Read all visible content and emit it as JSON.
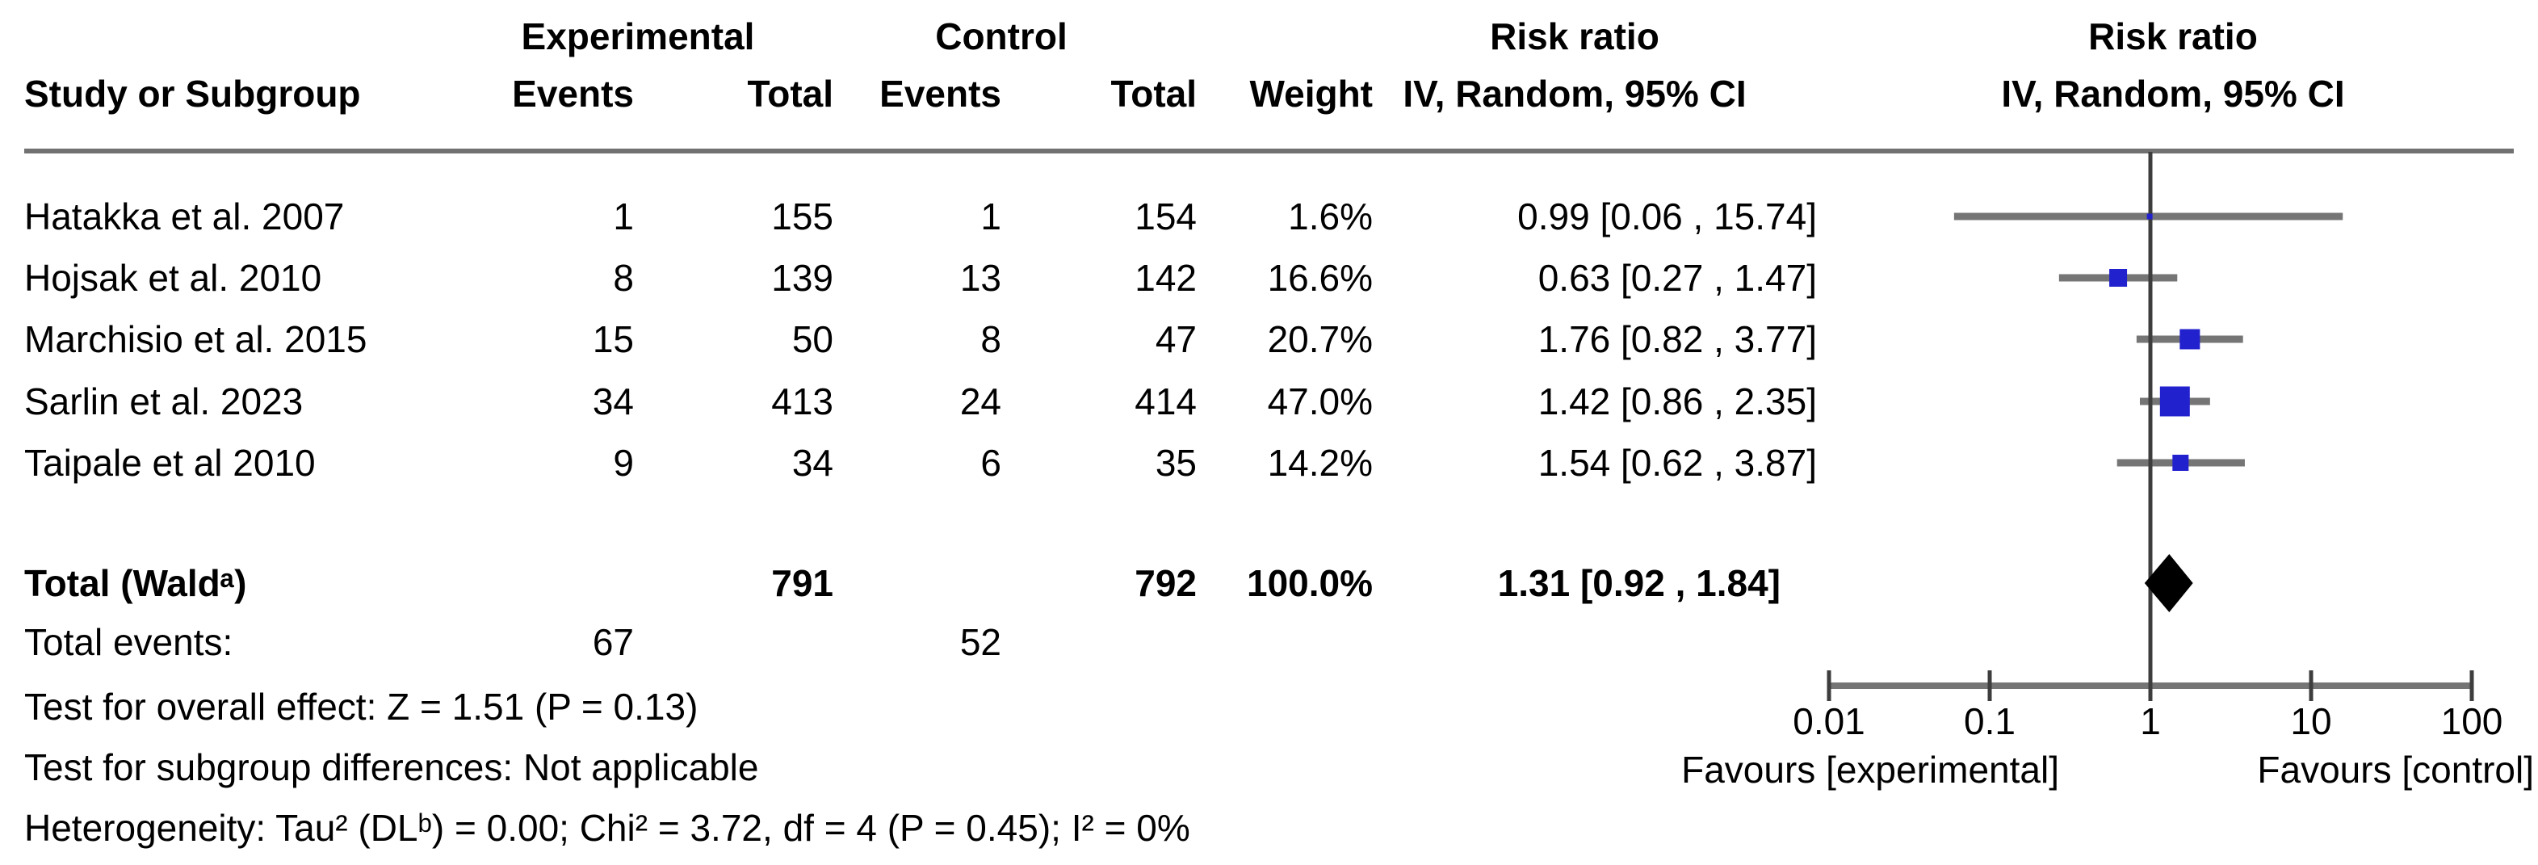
{
  "figure": {
    "columns": {
      "study": "Study or Subgroup",
      "experimental_group": "Experimental",
      "control_group": "Control",
      "events": "Events",
      "total": "Total",
      "weight": "Weight",
      "risk_ratio_title": "Risk ratio",
      "risk_ratio_subtitle": "IV, Random, 95% CI",
      "risk_ratio_plot_title": "Risk ratio",
      "risk_ratio_plot_subtitle": "IV, Random, 95% CI"
    },
    "total_row_label": "Total (Waldᵃ)",
    "total_events_label": "Total events:",
    "footnotes": [
      "Test for overall effect: Z = 1.51 (P = 0.13)",
      "Test for subgroup differences: Not applicable",
      "Heterogeneity: Tau² (DLᵇ) = 0.00; Chi² = 3.72, df = 4 (P = 0.45); I² = 0%"
    ],
    "colors": {
      "marker_blue": "#2121CE",
      "ci_line_gray": "#757575",
      "axis_gray": "#757575",
      "null_line": "#3D3D3D",
      "header_rule": "#717171",
      "diamond_black": "#000000"
    }
  },
  "chart_data": {
    "type": "scatter",
    "subtype": "forest-plot",
    "effect_measure": "Risk ratio",
    "model": "IV, Random, 95% CI",
    "x_scale": "log10",
    "x_ticks": [
      0.01,
      0.1,
      1,
      10,
      100
    ],
    "xlim": [
      0.01,
      100
    ],
    "favours_left": "Favours [experimental]",
    "favours_right": "Favours [control]",
    "studies": [
      {
        "study": "Hatakka et al. 2007",
        "exp_events": 1,
        "exp_total": 155,
        "ctl_events": 1,
        "ctl_total": 154,
        "weight_pct": 1.6,
        "rr": 0.99,
        "ci_low": 0.06,
        "ci_high": 15.74
      },
      {
        "study": "Hojsak et al. 2010",
        "exp_events": 8,
        "exp_total": 139,
        "ctl_events": 13,
        "ctl_total": 142,
        "weight_pct": 16.6,
        "rr": 0.63,
        "ci_low": 0.27,
        "ci_high": 1.47
      },
      {
        "study": "Marchisio et al. 2015",
        "exp_events": 15,
        "exp_total": 50,
        "ctl_events": 8,
        "ctl_total": 47,
        "weight_pct": 20.7,
        "rr": 1.76,
        "ci_low": 0.82,
        "ci_high": 3.77
      },
      {
        "study": "Sarlin et al. 2023",
        "exp_events": 34,
        "exp_total": 413,
        "ctl_events": 24,
        "ctl_total": 414,
        "weight_pct": 47.0,
        "rr": 1.42,
        "ci_low": 0.86,
        "ci_high": 2.35
      },
      {
        "study": "Taipale et al 2010",
        "exp_events": 9,
        "exp_total": 34,
        "ctl_events": 6,
        "ctl_total": 35,
        "weight_pct": 14.2,
        "rr": 1.54,
        "ci_low": 0.62,
        "ci_high": 3.87
      }
    ],
    "total": {
      "exp_total": 791,
      "ctl_total": 792,
      "weight_pct": 100.0,
      "rr": 1.31,
      "ci_low": 0.92,
      "ci_high": 1.84,
      "exp_events": 67,
      "ctl_events": 52
    }
  }
}
